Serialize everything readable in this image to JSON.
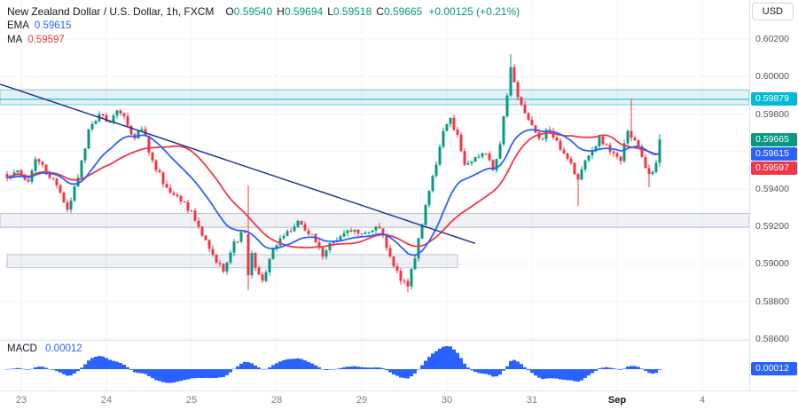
{
  "header": {
    "symbol_title": "New Zealand Dollar / U.S. Dollar, 1h, FXCM",
    "ohlc": {
      "o_label": "O",
      "o": "0.59540",
      "h_label": "H",
      "h": "0.59694",
      "l_label": "L",
      "l": "0.59518",
      "c_label": "C",
      "c": "0.59665",
      "change": "+0.00125 (+0.21%)"
    },
    "ema": {
      "label": "EMA",
      "value": "0.59615"
    },
    "ma": {
      "label": "MA",
      "value": "0.59597"
    },
    "currency_button": "USD"
  },
  "macd": {
    "label": "MACD",
    "value": "0.00012",
    "badge": "0.00012"
  },
  "price_axis": {
    "ticks": [
      {
        "label": "0.60200",
        "price": 0.602
      },
      {
        "label": "0.60000",
        "price": 0.6
      },
      {
        "label": "0.59800",
        "price": 0.598
      },
      {
        "label": "0.59600",
        "price": 0.596
      },
      {
        "label": "0.59400",
        "price": 0.594
      },
      {
        "label": "0.59200",
        "price": 0.592
      },
      {
        "label": "0.59000",
        "price": 0.59
      },
      {
        "label": "0.58800",
        "price": 0.588
      },
      {
        "label": "0.58600",
        "price": 0.586
      }
    ],
    "badges": [
      {
        "text": "0.59879",
        "price": 0.59879,
        "color": "#00bcd4",
        "name": "hline-price-badge"
      },
      {
        "text": "0.59665",
        "price": 0.59665,
        "color": "#089981",
        "name": "last-price-badge"
      },
      {
        "text": "0.59615",
        "price": 0.59615,
        "color": "#2962ff",
        "name": "ema-price-badge"
      },
      {
        "text": "0.59597",
        "price": 0.59597,
        "color": "#f23645",
        "name": "ma-price-badge"
      }
    ]
  },
  "time_axis": {
    "labels": [
      {
        "text": "23",
        "index": 4
      },
      {
        "text": "24",
        "index": 28
      },
      {
        "text": "25",
        "index": 52
      },
      {
        "text": "28",
        "index": 76
      },
      {
        "text": "29",
        "index": 100
      },
      {
        "text": "30",
        "index": 124
      },
      {
        "text": "31",
        "index": 148
      },
      {
        "text": "Sep",
        "index": 172,
        "emphasis": true
      },
      {
        "text": "4",
        "index": 196
      }
    ]
  },
  "colors": {
    "up": "#089981",
    "down": "#f23645",
    "ema": "#2962ff",
    "ma": "#f23645",
    "macd": "#2962ff",
    "grid": "#f0f3fa",
    "border": "#e0e3eb",
    "hline": "#00bcd4",
    "trendline": "#283593",
    "axis_text": "#50535e",
    "time_text": "#787b86",
    "title_text": "#131722",
    "change_positive": "#089981"
  },
  "chart_data": {
    "type": "candlestick",
    "title": "New Zealand Dollar / U.S. Dollar, 1h, FXCM",
    "symbol": "NZD/USD",
    "interval": "1h",
    "exchange": "FXCM",
    "last_candle": {
      "open": 0.5954,
      "high": 0.59694,
      "low": 0.59518,
      "close": 0.59665
    },
    "change": {
      "abs": 0.00125,
      "pct": 0.21
    },
    "y_axis": {
      "min": 0.58595,
      "max": 0.60409,
      "grid_step": 0.002
    },
    "x_tick_labels": [
      "23",
      "24",
      "25",
      "28",
      "29",
      "30",
      "31",
      "Sep",
      "4"
    ],
    "num_candles": 185,
    "candle_spacing": 4,
    "price_keypoints": [
      [
        0,
        0.5946
      ],
      [
        3,
        0.595
      ],
      [
        6,
        0.5944
      ],
      [
        8,
        0.5956
      ],
      [
        10,
        0.5953
      ],
      [
        12,
        0.5946
      ],
      [
        14,
        0.5942
      ],
      [
        17,
        0.5929
      ],
      [
        20,
        0.5946
      ],
      [
        23,
        0.5972
      ],
      [
        26,
        0.598
      ],
      [
        29,
        0.5976
      ],
      [
        31,
        0.5982
      ],
      [
        33,
        0.5979
      ],
      [
        36,
        0.5967
      ],
      [
        38,
        0.5972
      ],
      [
        42,
        0.595
      ],
      [
        46,
        0.5938
      ],
      [
        50,
        0.5933
      ],
      [
        54,
        0.592
      ],
      [
        58,
        0.5905
      ],
      [
        61,
        0.5896
      ],
      [
        64,
        0.5912
      ],
      [
        67,
        0.5917
      ],
      [
        70,
        0.5898
      ],
      [
        72,
        0.5891
      ],
      [
        75,
        0.5908
      ],
      [
        78,
        0.5915
      ],
      [
        82,
        0.5923
      ],
      [
        86,
        0.5916
      ],
      [
        89,
        0.5904
      ],
      [
        92,
        0.5912
      ],
      [
        96,
        0.5918
      ],
      [
        100,
        0.5916
      ],
      [
        104,
        0.592
      ],
      [
        106,
        0.5916
      ],
      [
        108,
        0.5904
      ],
      [
        111,
        0.5891
      ],
      [
        113,
        0.5888
      ],
      [
        115,
        0.5903
      ],
      [
        117,
        0.5921
      ],
      [
        119,
        0.5939
      ],
      [
        121,
        0.5953
      ],
      [
        123,
        0.5971
      ],
      [
        125,
        0.5978
      ],
      [
        127,
        0.5969
      ],
      [
        129,
        0.5953
      ],
      [
        132,
        0.5957
      ],
      [
        135,
        0.5959
      ],
      [
        137,
        0.595
      ],
      [
        139,
        0.5964
      ],
      [
        141,
        0.599
      ],
      [
        142,
        0.6005
      ],
      [
        143,
        0.5997
      ],
      [
        145,
        0.5985
      ],
      [
        147,
        0.5977
      ],
      [
        150,
        0.5967
      ],
      [
        153,
        0.5971
      ],
      [
        156,
        0.5961
      ],
      [
        159,
        0.5954
      ],
      [
        161,
        0.5945
      ],
      [
        164,
        0.5958
      ],
      [
        167,
        0.5968
      ],
      [
        170,
        0.596
      ],
      [
        173,
        0.5955
      ],
      [
        175,
        0.5971
      ],
      [
        177,
        0.5966
      ],
      [
        179,
        0.5957
      ],
      [
        181,
        0.5948
      ],
      [
        183,
        0.5954
      ],
      [
        184,
        0.59665
      ]
    ],
    "candle_overrides": [
      {
        "i": 68,
        "o": 0.5916,
        "h": 0.5942,
        "l": 0.5886,
        "c": 0.5894
      },
      {
        "i": 113,
        "l": 0.5885
      },
      {
        "i": 142,
        "h": 0.6012
      },
      {
        "i": 161,
        "l": 0.5931
      },
      {
        "i": 176,
        "h": 0.5988
      },
      {
        "i": 181,
        "l": 0.5941
      },
      {
        "i": 184,
        "o": 0.5954,
        "h": 0.59694,
        "l": 0.59518,
        "c": 0.59665
      }
    ],
    "indicators": {
      "ema": {
        "label": "EMA",
        "period": 20,
        "value": 0.59615
      },
      "ma": {
        "label": "MA",
        "period": 30,
        "value": 0.59597
      },
      "macd": {
        "label": "MACD",
        "value": 0.00012,
        "params": [
          12,
          26,
          9
        ]
      }
    },
    "horizontal_line": {
      "price": 0.59879,
      "color": "#00bcd4"
    },
    "trendline": {
      "i1": -2,
      "p1": 0.5996,
      "i2": 132,
      "p2": 0.5911,
      "color": "#283593"
    },
    "zones": [
      {
        "name": "resistance-zone",
        "p_top": 0.5993,
        "p_bottom": 0.5985,
        "i1": null,
        "i2": null,
        "fill": "rgba(56,166,175,0.14)",
        "stroke": "rgba(56,166,175,0.6)"
      },
      {
        "name": "mid-zone",
        "p_top": 0.5927,
        "p_bottom": 0.59195,
        "i1": null,
        "i2": null,
        "fill": "rgba(120,137,172,0.12)",
        "stroke": "rgba(120,137,172,0.45)"
      },
      {
        "name": "support-zone",
        "p_top": 0.5905,
        "p_bottom": 0.5898,
        "i1": 0,
        "i2": 127,
        "fill": "rgba(120,137,172,0.12)",
        "stroke": "rgba(120,137,172,0.45)"
      }
    ],
    "legend_position": "top-left",
    "grid": true
  }
}
